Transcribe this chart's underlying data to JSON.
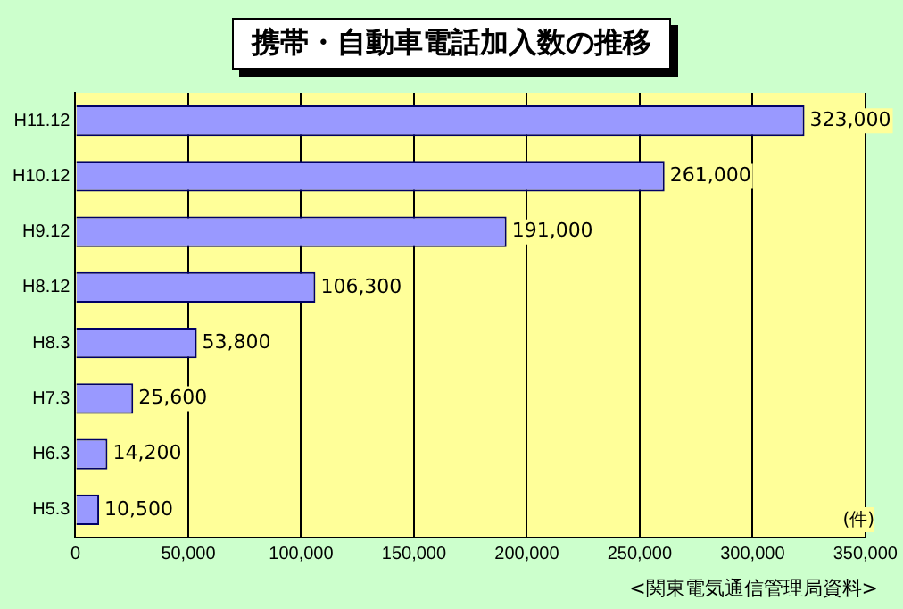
{
  "chart_data": {
    "type": "bar",
    "orientation": "horizontal",
    "title": "携帯・自動車電話加入数の推移",
    "xlabel": "(件)",
    "categories": [
      "H11.12",
      "H10.12",
      "H9.12",
      "H8.12",
      "H8.3",
      "H7.3",
      "H6.3",
      "H5.3"
    ],
    "values": [
      323000,
      261000,
      191000,
      106300,
      53800,
      25600,
      14200,
      10500
    ],
    "color": "#9999ff",
    "value_labels": [
      "323,000",
      "261,000",
      "191,000",
      "106,300",
      "53,800",
      "25,600",
      "14,200",
      "10,500"
    ],
    "xlim": [
      0,
      350000
    ],
    "xticks": [
      0,
      {
        "value": 50000,
        "label": "50,000"
      },
      {
        "value": 100000,
        "label": "100,000"
      },
      {
        "value": 150000,
        "label": "150,000"
      },
      {
        "value": 200000,
        "label": "200,000"
      },
      {
        "value": 250000,
        "label": "250,000"
      },
      {
        "value": 300000,
        "label": "300,000"
      },
      {
        "value": 350000,
        "label": "350,000"
      }
    ],
    "grid": "x",
    "legend": false,
    "annotations": [
      "<関東電気通信管理局資料>"
    ]
  }
}
